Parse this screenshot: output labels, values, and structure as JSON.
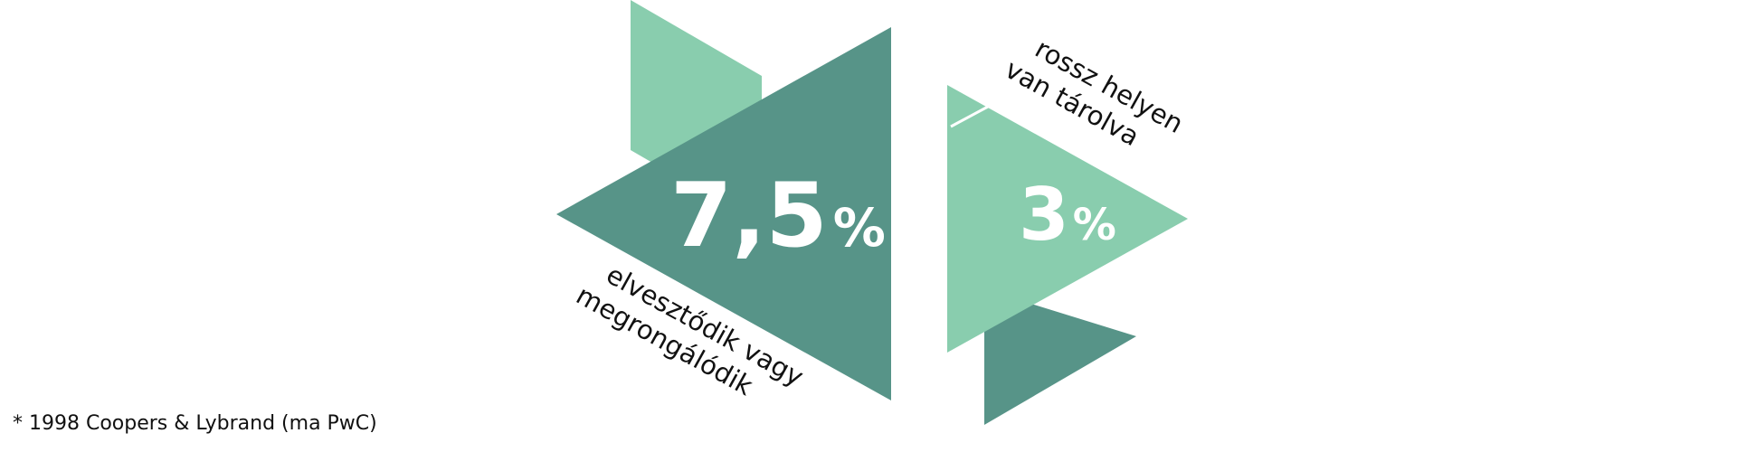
{
  "colors": {
    "dark": "#579488",
    "light": "#89cdae",
    "text_on_shape": "#ffffff",
    "text": "#111111"
  },
  "stats": [
    {
      "number": "7,5",
      "unit": "%",
      "label_lines": [
        "elvesztődik vagy",
        "megrongálódik"
      ]
    },
    {
      "number": "3",
      "unit": "%",
      "label_lines": [
        "rossz helyen",
        "van tárolva"
      ]
    }
  ],
  "footnote": "* 1998 Coopers & Lybrand (ma PwC)"
}
